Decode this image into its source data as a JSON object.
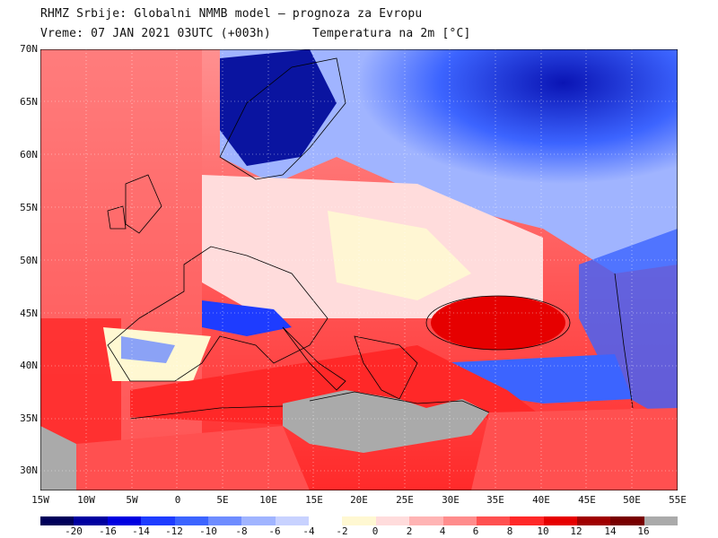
{
  "header": {
    "title": "RHMZ Srbije: Globalni NMMB model — prognoza za Evropu",
    "valid_time": "Vreme: 07 JAN 2021 03UTC (+003h)",
    "field": "Temperatura na 2m [°C]"
  },
  "axes": {
    "lat_ticks": [
      "70N",
      "65N",
      "60N",
      "55N",
      "50N",
      "45N",
      "40N",
      "35N",
      "30N"
    ],
    "lon_ticks": [
      "15W",
      "10W",
      "5W",
      "0",
      "5E",
      "10E",
      "15E",
      "20E",
      "25E",
      "30E",
      "35E",
      "40E",
      "45E",
      "50E",
      "55E"
    ]
  },
  "colorbar": {
    "labels": [
      "-20",
      "-16",
      "-14",
      "-12",
      "-10",
      "-8",
      "-6",
      "-4",
      "-2",
      "0",
      "2",
      "4",
      "6",
      "8",
      "10",
      "12",
      "14",
      "16"
    ],
    "colors": [
      "#00005a",
      "#0000a0",
      "#0000e0",
      "#1e3cff",
      "#3c64ff",
      "#6e8cff",
      "#a0b4ff",
      "#c8d2ff",
      "#ffffff",
      "#fff8d2",
      "#ffdcdc",
      "#ffb4b4",
      "#ff8c8c",
      "#ff5050",
      "#ff2828",
      "#e60000",
      "#a00000",
      "#780000",
      "#aaaaaa"
    ]
  }
}
